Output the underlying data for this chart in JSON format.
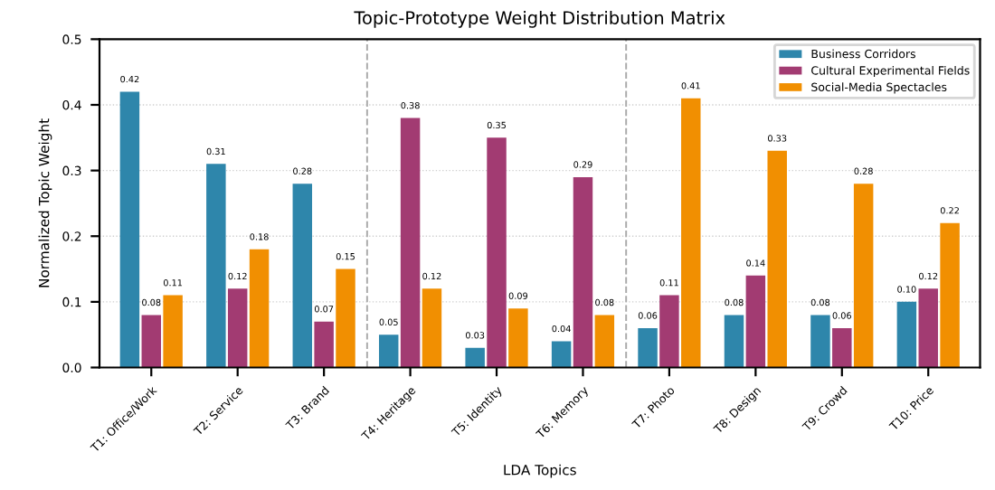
{
  "chart_data": {
    "type": "bar",
    "title": "Topic-Prototype Weight Distribution Matrix",
    "xlabel": "LDA Topics",
    "ylabel": "Normalized Topic Weight",
    "categories": [
      "T1: Office/Work",
      "T2: Service",
      "T3: Brand",
      "T4: Heritage",
      "T5: Identity",
      "T6: Memory",
      "T7: Photo",
      "T8: Design",
      "T9: Crowd",
      "T10: Price"
    ],
    "series": [
      {
        "name": "Business Corridors",
        "color": "#2e86ab",
        "values": [
          0.42,
          0.31,
          0.28,
          0.05,
          0.03,
          0.04,
          0.06,
          0.08,
          0.08,
          0.1
        ],
        "value_labels": [
          "0.42",
          "0.31",
          "0.28",
          "0.05",
          "0.03",
          "0.04",
          "0.06",
          "0.08",
          "0.08",
          "0.10"
        ]
      },
      {
        "name": "Cultural Experimental Fields",
        "color": "#a23b72",
        "values": [
          0.08,
          0.12,
          0.07,
          0.38,
          0.35,
          0.29,
          0.11,
          0.14,
          0.06,
          0.12
        ],
        "value_labels": [
          "0.08",
          "0.12",
          "0.07",
          "0.38",
          "0.35",
          "0.29",
          "0.11",
          "0.14",
          "0.06",
          "0.12"
        ]
      },
      {
        "name": "Social-Media Spectacles",
        "color": "#f18f01",
        "values": [
          0.11,
          0.18,
          0.15,
          0.12,
          0.09,
          0.08,
          0.41,
          0.33,
          0.28,
          0.22
        ],
        "value_labels": [
          "0.11",
          "0.18",
          "0.15",
          "0.12",
          "0.09",
          "0.08",
          "0.41",
          "0.33",
          "0.28",
          "0.22"
        ]
      }
    ],
    "ylim": [
      0,
      0.5
    ],
    "yticks": [
      {
        "value": 0,
        "label": "0.0"
      },
      0.1,
      0.2,
      0.3,
      0.4,
      0.5
    ],
    "grid": "y",
    "legend": "top right"
  }
}
